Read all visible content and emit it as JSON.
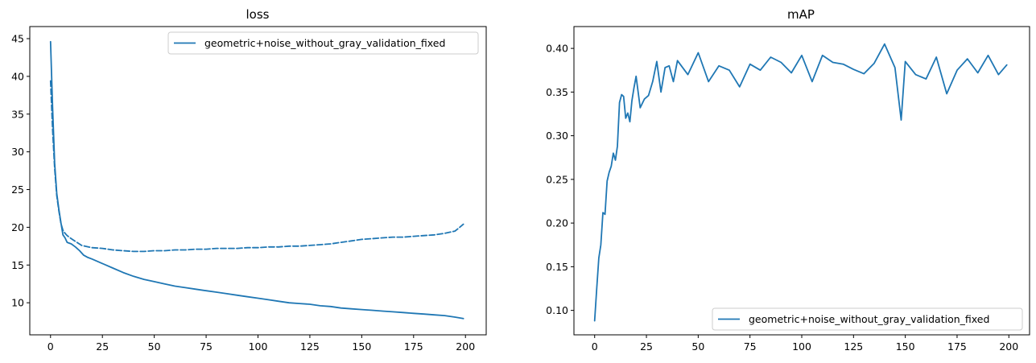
{
  "chart_data": [
    {
      "type": "line",
      "title": "loss",
      "xlabel": "",
      "ylabel": "",
      "xlim": [
        -10,
        210
      ],
      "ylim": [
        5.75,
        46.6
      ],
      "xticks": [
        0,
        25,
        50,
        75,
        100,
        125,
        150,
        175,
        200
      ],
      "yticks": [
        10,
        15,
        20,
        25,
        30,
        35,
        40,
        45
      ],
      "grid": false,
      "legend_position": "upper-right",
      "legend_entries": [
        "geometric+noise_without_gray_validation_fixed"
      ],
      "color": "#1f77b4",
      "series": [
        {
          "name": "geometric+noise_without_gray_validation_fixed",
          "line_style": "solid",
          "x": [
            0,
            1,
            2,
            3,
            4,
            5,
            6,
            7,
            8,
            10,
            12,
            14,
            16,
            18,
            20,
            25,
            30,
            35,
            40,
            45,
            50,
            55,
            60,
            65,
            70,
            75,
            80,
            85,
            90,
            95,
            100,
            105,
            110,
            115,
            120,
            125,
            130,
            135,
            140,
            145,
            150,
            155,
            160,
            165,
            170,
            175,
            180,
            185,
            190,
            195,
            199
          ],
          "y": [
            44.6,
            36.0,
            28.5,
            24.5,
            22.4,
            20.6,
            19.0,
            18.6,
            18.0,
            17.8,
            17.4,
            16.9,
            16.3,
            16.0,
            15.8,
            15.2,
            14.6,
            14.0,
            13.5,
            13.1,
            12.8,
            12.5,
            12.2,
            12.0,
            11.8,
            11.6,
            11.4,
            11.2,
            11.0,
            10.8,
            10.6,
            10.4,
            10.2,
            10.0,
            9.9,
            9.8,
            9.6,
            9.5,
            9.3,
            9.2,
            9.1,
            9.0,
            8.9,
            8.8,
            8.7,
            8.6,
            8.5,
            8.4,
            8.3,
            8.1,
            7.9
          ]
        },
        {
          "name": "geometric+noise_without_gray_validation_fixed",
          "line_style": "dashed",
          "x": [
            0,
            1,
            2,
            3,
            4,
            5,
            6,
            7,
            8,
            10,
            15,
            20,
            25,
            30,
            35,
            40,
            45,
            50,
            55,
            60,
            65,
            70,
            75,
            80,
            85,
            90,
            95,
            100,
            105,
            110,
            115,
            120,
            125,
            130,
            135,
            140,
            145,
            150,
            155,
            160,
            165,
            170,
            175,
            180,
            185,
            190,
            195,
            199
          ],
          "y": [
            39.4,
            33.0,
            27.8,
            24.2,
            22.2,
            20.5,
            19.6,
            19.2,
            18.9,
            18.5,
            17.6,
            17.3,
            17.2,
            17.0,
            16.9,
            16.8,
            16.8,
            16.9,
            16.9,
            17.0,
            17.0,
            17.1,
            17.1,
            17.2,
            17.2,
            17.2,
            17.3,
            17.3,
            17.4,
            17.4,
            17.5,
            17.5,
            17.6,
            17.7,
            17.8,
            18.0,
            18.2,
            18.4,
            18.5,
            18.6,
            18.7,
            18.7,
            18.8,
            18.9,
            19.0,
            19.2,
            19.5,
            20.4
          ]
        }
      ]
    },
    {
      "type": "line",
      "title": "mAP",
      "xlabel": "",
      "ylabel": "",
      "xlim": [
        -10,
        210
      ],
      "ylim": [
        0.072,
        0.425
      ],
      "xticks": [
        0,
        25,
        50,
        75,
        100,
        125,
        150,
        175,
        200
      ],
      "yticks": [
        0.1,
        0.15,
        0.2,
        0.25,
        0.3,
        0.35,
        0.4
      ],
      "ytick_labels": [
        "0.10",
        "0.15",
        "0.20",
        "0.25",
        "0.30",
        "0.35",
        "0.40"
      ],
      "grid": false,
      "legend_position": "lower-right",
      "legend_entries": [
        "geometric+noise_without_gray_validation_fixed"
      ],
      "color": "#1f77b4",
      "series": [
        {
          "name": "geometric+noise_without_gray_validation_fixed",
          "line_style": "solid",
          "x": [
            0,
            1,
            2,
            3,
            4,
            5,
            6,
            7,
            8,
            9,
            10,
            11,
            12,
            13,
            14,
            15,
            16,
            17,
            18,
            19,
            20,
            22,
            24,
            26,
            28,
            30,
            32,
            34,
            36,
            38,
            40,
            45,
            50,
            55,
            60,
            65,
            70,
            75,
            80,
            85,
            90,
            95,
            100,
            105,
            110,
            115,
            120,
            125,
            130,
            135,
            140,
            145,
            148,
            150,
            155,
            160,
            165,
            170,
            175,
            180,
            185,
            190,
            195,
            199
          ],
          "y": [
            0.088,
            0.125,
            0.16,
            0.175,
            0.212,
            0.21,
            0.248,
            0.258,
            0.265,
            0.28,
            0.272,
            0.288,
            0.338,
            0.347,
            0.345,
            0.32,
            0.326,
            0.316,
            0.34,
            0.355,
            0.368,
            0.332,
            0.342,
            0.346,
            0.362,
            0.385,
            0.35,
            0.378,
            0.38,
            0.362,
            0.386,
            0.37,
            0.395,
            0.362,
            0.38,
            0.375,
            0.356,
            0.382,
            0.375,
            0.39,
            0.384,
            0.372,
            0.392,
            0.362,
            0.392,
            0.384,
            0.382,
            0.376,
            0.371,
            0.383,
            0.405,
            0.378,
            0.318,
            0.385,
            0.37,
            0.365,
            0.39,
            0.348,
            0.375,
            0.388,
            0.372,
            0.392,
            0.37,
            0.381
          ]
        }
      ]
    }
  ]
}
